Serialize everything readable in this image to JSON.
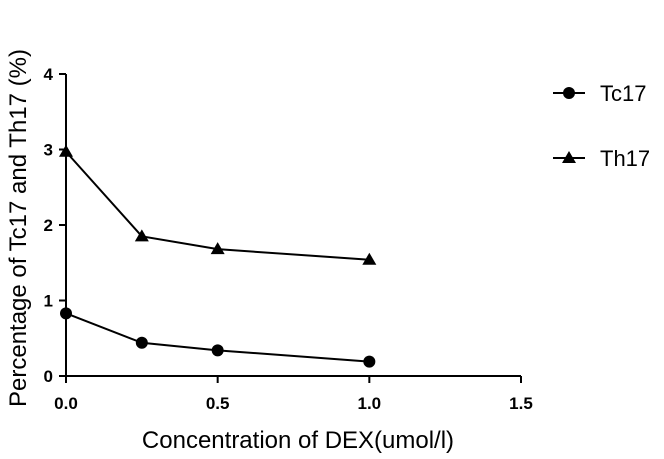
{
  "chart_data": {
    "type": "line",
    "xlabel": "Concentration of DEX(umol/l)",
    "ylabel": "Percentage of Tc17 and Th17 (%)",
    "xlim": [
      0,
      1.5
    ],
    "ylim": [
      0,
      4
    ],
    "x_ticks": [
      "0.0",
      "0.5",
      "1.0",
      "1.5"
    ],
    "y_ticks": [
      "0",
      "1",
      "2",
      "3",
      "4"
    ],
    "x": [
      0,
      0.25,
      0.5,
      1.0
    ],
    "series": [
      {
        "name": "Tc17",
        "marker": "circle",
        "values": [
          0.83,
          0.44,
          0.34,
          0.19
        ]
      },
      {
        "name": "Th17",
        "marker": "triangle",
        "values": [
          2.97,
          1.85,
          1.68,
          1.54
        ]
      }
    ],
    "grid": false,
    "legend_position": "right"
  }
}
